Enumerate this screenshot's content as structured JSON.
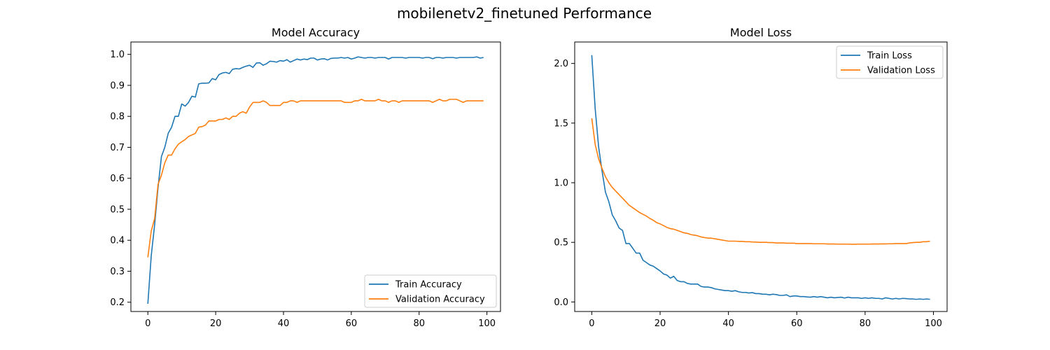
{
  "figure": {
    "suptitle": "mobilenetv2_finetuned Performance"
  },
  "chart_data": [
    {
      "type": "line",
      "title": "Model Accuracy",
      "xlabel": "",
      "ylabel": "",
      "xlim": [
        -5,
        104
      ],
      "ylim": [
        0.17,
        1.04
      ],
      "xticks": [
        0,
        20,
        40,
        60,
        80,
        100
      ],
      "yticks": [
        0.2,
        0.3,
        0.4,
        0.5,
        0.6,
        0.7,
        0.8,
        0.9,
        1.0
      ],
      "ytick_labels": [
        "0.2",
        "0.3",
        "0.4",
        "0.5",
        "0.6",
        "0.7",
        "0.8",
        "0.9",
        "1.0"
      ],
      "legend_position": "lower-right",
      "grid": false,
      "series": [
        {
          "name": "Train Accuracy",
          "color": "#1f77b4",
          "values": [
            0.195,
            0.35,
            0.45,
            0.57,
            0.67,
            0.7,
            0.745,
            0.765,
            0.8,
            0.8,
            0.84,
            0.833,
            0.845,
            0.865,
            0.862,
            0.905,
            0.907,
            0.907,
            0.908,
            0.922,
            0.918,
            0.935,
            0.94,
            0.942,
            0.938,
            0.952,
            0.954,
            0.953,
            0.958,
            0.962,
            0.965,
            0.958,
            0.972,
            0.973,
            0.965,
            0.97,
            0.978,
            0.977,
            0.975,
            0.98,
            0.978,
            0.983,
            0.975,
            0.98,
            0.985,
            0.982,
            0.985,
            0.983,
            0.988,
            0.988,
            0.982,
            0.985,
            0.986,
            0.982,
            0.987,
            0.988,
            0.988,
            0.99,
            0.988,
            0.99,
            0.985,
            0.988,
            0.992,
            0.99,
            0.988,
            0.99,
            0.99,
            0.988,
            0.99,
            0.99,
            0.99,
            0.985,
            0.99,
            0.99,
            0.99,
            0.99,
            0.988,
            0.99,
            0.99,
            0.99,
            0.99,
            0.988,
            0.99,
            0.99,
            0.986,
            0.99,
            0.99,
            0.988,
            0.99,
            0.99,
            0.99,
            0.988,
            0.99,
            0.99,
            0.99,
            0.99,
            0.99,
            0.992,
            0.988,
            0.99
          ]
        },
        {
          "name": "Validation Accuracy",
          "color": "#ff7f0e",
          "values": [
            0.345,
            0.43,
            0.47,
            0.58,
            0.61,
            0.65,
            0.675,
            0.675,
            0.695,
            0.71,
            0.718,
            0.725,
            0.735,
            0.74,
            0.745,
            0.765,
            0.767,
            0.772,
            0.785,
            0.785,
            0.785,
            0.79,
            0.79,
            0.795,
            0.79,
            0.8,
            0.8,
            0.81,
            0.815,
            0.81,
            0.83,
            0.845,
            0.845,
            0.845,
            0.85,
            0.845,
            0.835,
            0.835,
            0.835,
            0.835,
            0.845,
            0.845,
            0.85,
            0.85,
            0.845,
            0.85,
            0.85,
            0.85,
            0.85,
            0.85,
            0.85,
            0.85,
            0.85,
            0.85,
            0.85,
            0.85,
            0.85,
            0.85,
            0.845,
            0.845,
            0.845,
            0.85,
            0.85,
            0.855,
            0.85,
            0.85,
            0.85,
            0.85,
            0.855,
            0.85,
            0.85,
            0.845,
            0.85,
            0.85,
            0.845,
            0.85,
            0.85,
            0.85,
            0.85,
            0.85,
            0.85,
            0.85,
            0.85,
            0.85,
            0.845,
            0.85,
            0.855,
            0.85,
            0.85,
            0.855,
            0.855,
            0.855,
            0.85,
            0.845,
            0.85,
            0.85,
            0.85,
            0.85,
            0.85,
            0.85
          ]
        }
      ]
    },
    {
      "type": "line",
      "title": "Model Loss",
      "xlabel": "",
      "ylabel": "",
      "xlim": [
        -5,
        104
      ],
      "ylim": [
        -0.08,
        2.18
      ],
      "xticks": [
        0,
        20,
        40,
        60,
        80,
        100
      ],
      "yticks": [
        0.0,
        0.5,
        1.0,
        1.5,
        2.0
      ],
      "ytick_labels": [
        "0.0",
        "0.5",
        "1.0",
        "1.5",
        "2.0"
      ],
      "legend_position": "upper-right",
      "grid": false,
      "series": [
        {
          "name": "Train Loss",
          "color": "#1f77b4",
          "values": [
            2.07,
            1.62,
            1.3,
            1.1,
            0.92,
            0.84,
            0.73,
            0.68,
            0.62,
            0.6,
            0.49,
            0.49,
            0.45,
            0.41,
            0.41,
            0.35,
            0.33,
            0.31,
            0.3,
            0.28,
            0.26,
            0.235,
            0.225,
            0.2,
            0.215,
            0.18,
            0.17,
            0.17,
            0.155,
            0.15,
            0.15,
            0.15,
            0.13,
            0.125,
            0.125,
            0.12,
            0.11,
            0.105,
            0.1,
            0.095,
            0.095,
            0.09,
            0.095,
            0.085,
            0.08,
            0.08,
            0.075,
            0.078,
            0.07,
            0.07,
            0.065,
            0.065,
            0.06,
            0.065,
            0.062,
            0.055,
            0.055,
            0.06,
            0.045,
            0.05,
            0.05,
            0.045,
            0.045,
            0.042,
            0.04,
            0.045,
            0.04,
            0.045,
            0.04,
            0.035,
            0.04,
            0.035,
            0.038,
            0.04,
            0.033,
            0.04,
            0.035,
            0.035,
            0.035,
            0.03,
            0.035,
            0.03,
            0.035,
            0.03,
            0.03,
            0.025,
            0.035,
            0.03,
            0.025,
            0.03,
            0.025,
            0.03,
            0.028,
            0.025,
            0.025,
            0.022,
            0.025,
            0.022,
            0.025,
            0.022
          ]
        },
        {
          "name": "Validation Loss",
          "color": "#ff7f0e",
          "values": [
            1.54,
            1.32,
            1.2,
            1.12,
            1.05,
            1.0,
            0.96,
            0.93,
            0.9,
            0.87,
            0.84,
            0.81,
            0.79,
            0.77,
            0.75,
            0.735,
            0.72,
            0.7,
            0.685,
            0.665,
            0.655,
            0.64,
            0.625,
            0.615,
            0.61,
            0.6,
            0.59,
            0.58,
            0.575,
            0.565,
            0.56,
            0.555,
            0.545,
            0.54,
            0.535,
            0.535,
            0.53,
            0.525,
            0.52,
            0.515,
            0.51,
            0.51,
            0.51,
            0.508,
            0.508,
            0.505,
            0.505,
            0.503,
            0.502,
            0.5,
            0.5,
            0.5,
            0.498,
            0.498,
            0.495,
            0.495,
            0.495,
            0.493,
            0.493,
            0.493,
            0.49,
            0.49,
            0.49,
            0.49,
            0.49,
            0.488,
            0.488,
            0.488,
            0.488,
            0.486,
            0.486,
            0.486,
            0.485,
            0.485,
            0.485,
            0.485,
            0.484,
            0.484,
            0.485,
            0.485,
            0.485,
            0.485,
            0.486,
            0.486,
            0.486,
            0.487,
            0.487,
            0.488,
            0.488,
            0.49,
            0.49,
            0.49,
            0.49,
            0.495,
            0.498,
            0.5,
            0.5,
            0.505,
            0.505,
            0.51
          ]
        }
      ]
    }
  ]
}
